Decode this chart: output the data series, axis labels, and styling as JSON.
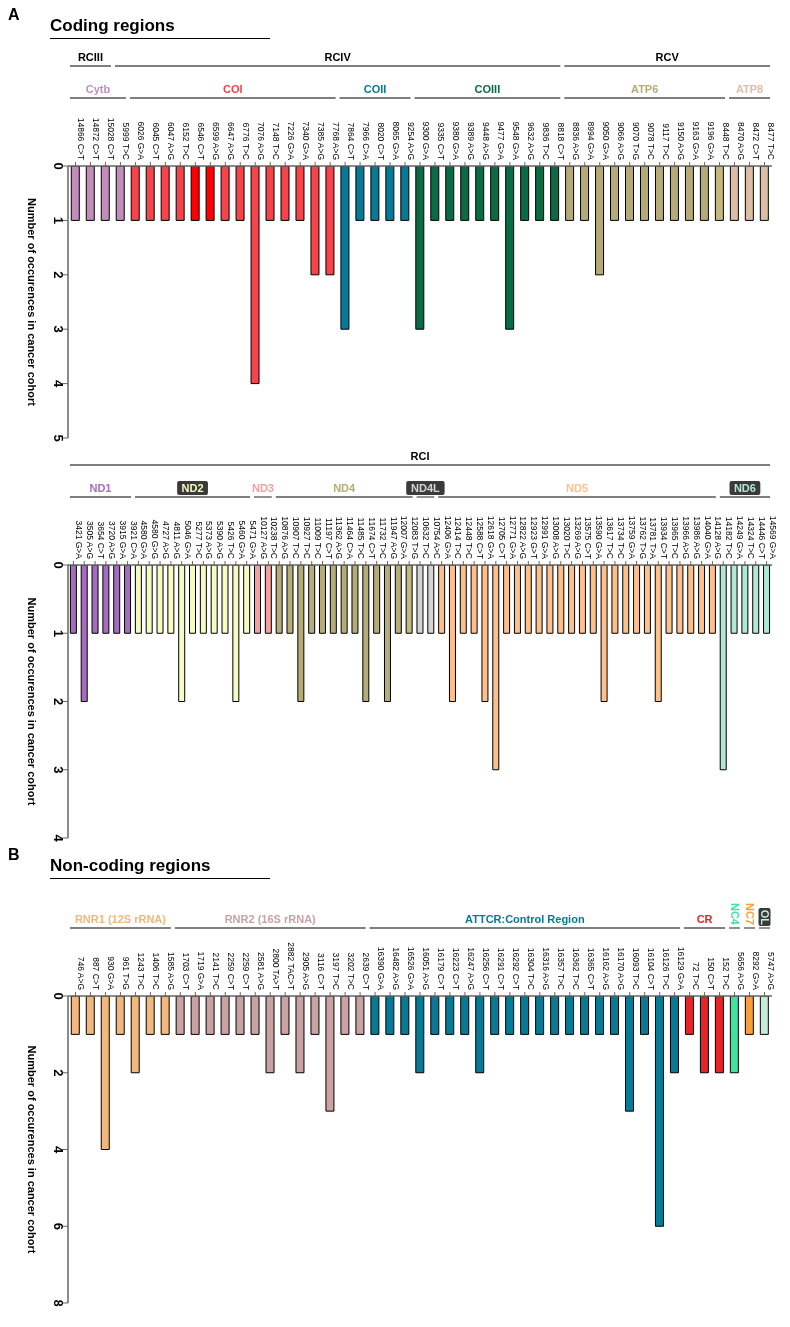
{
  "chart_data": [
    {
      "type": "bar",
      "title": "Coding regions",
      "ylabel": "Number of occurences in cancer cohort",
      "stacked": true,
      "annotations": [
        "A",
        "RCIII",
        "RCIV",
        "RCV"
      ],
      "colors": [
        "#c28dbb",
        "#c28dbb",
        "#c28dbb",
        "#c28dbb",
        "#f7434a",
        "#f7434a",
        "#f7434a",
        "#f7434a",
        "#ff0000",
        "#ff0000",
        "#f7434a",
        "#f7434a",
        "#f7434a",
        "#f7434a",
        "#f7434a",
        "#f7434a",
        "#f7434a",
        "#f7434a",
        "#077b96",
        "#077b96",
        "#077b96",
        "#077b96",
        "#077b96",
        "#0a6b45",
        "#0a6b45",
        "#0a6b45",
        "#0a6b45",
        "#0a6b45",
        "#0a6b45",
        "#0a6b45",
        "#0a6b45",
        "#0a6b45",
        "#0a6b45",
        "#b5aa78",
        "#b5aa78",
        "#b5aa78",
        "#b5aa78",
        "#b5aa78",
        "#b5aa78",
        "#b5aa78",
        "#b5aa78",
        "#b5aa78",
        "#b5aa78",
        "#c4ba80",
        "#dcbea6",
        "#dcbea6",
        "#dcbea6"
      ],
      "categories": [
        "14866 C>T",
        "14872 C>T",
        "15028 C>T",
        "5999 T>C",
        "6026 G>A",
        "6045 C>T",
        "6047 A>G",
        "6152 T>C",
        "6546 C>T",
        "6599 A>G",
        "6647 A>G",
        "6776 T>C",
        "7076 A>G",
        "7148 T>C",
        "7226 G>A",
        "7340 G>A",
        "7385 A>G",
        "7768 A>G",
        "7864 C>T",
        "7966 C>A",
        "8020 C>T",
        "8065 G>A",
        "9254 A>G",
        "9300 G>A",
        "9335 C>T",
        "9380 G>A",
        "9389 A>G",
        "9448 A>G",
        "9477 G>A",
        "9548 G>A",
        "9632 A>G",
        "9836 T>C",
        "8818 C>T",
        "8836 A>G",
        "8994 G>A",
        "9050 G>A",
        "9066 A>G",
        "9070 T>G",
        "9078 T>C",
        "9117 T>C",
        "9150 A>G",
        "9163 G>A",
        "9196 G>A",
        "8448 T>C",
        "8470 A>G",
        "8472 C>T",
        "8477 T>C"
      ],
      "series": [
        {
          "name": "Cytb",
          "color": "#c28dbb",
          "values": [
            1,
            1,
            1,
            1,
            null,
            null,
            null,
            null,
            null,
            null,
            null,
            null,
            null,
            null,
            null,
            null,
            null,
            null,
            null,
            null,
            null,
            null,
            null,
            null,
            null,
            null,
            null,
            null,
            null,
            null,
            null,
            null,
            null,
            null,
            null,
            null,
            null,
            null,
            null,
            null,
            null,
            null,
            null,
            null,
            null,
            null,
            null
          ]
        },
        {
          "name": "COI",
          "color": "#f7434a",
          "values": [
            null,
            null,
            null,
            null,
            1,
            1,
            1,
            1,
            null,
            null,
            1,
            1,
            4,
            1,
            1,
            1,
            2,
            2,
            null,
            null,
            null,
            null,
            null,
            null,
            null,
            null,
            null,
            null,
            null,
            null,
            null,
            null,
            null,
            null,
            null,
            null,
            null,
            null,
            null,
            null,
            null,
            null,
            null,
            null,
            null,
            null,
            null
          ]
        },
        {
          "color": "#ff0000",
          "values": [
            null,
            null,
            null,
            null,
            null,
            null,
            null,
            null,
            1,
            1,
            null,
            null,
            null,
            null,
            null,
            null,
            null,
            null,
            null,
            null,
            null,
            null,
            null,
            null,
            null,
            null,
            null,
            null,
            null,
            null,
            null,
            null,
            null,
            null,
            null,
            null,
            null,
            null,
            null,
            null,
            null,
            null,
            null,
            null,
            null,
            null,
            null
          ]
        },
        {
          "name": "COII",
          "color": "#077b96",
          "values": [
            null,
            null,
            null,
            null,
            null,
            null,
            null,
            null,
            null,
            null,
            null,
            null,
            null,
            null,
            null,
            null,
            null,
            null,
            3,
            1,
            1,
            1,
            1,
            null,
            null,
            null,
            null,
            null,
            null,
            null,
            null,
            null,
            null,
            null,
            null,
            null,
            null,
            null,
            null,
            null,
            null,
            null,
            null,
            null,
            null,
            null,
            null
          ]
        },
        {
          "name": "COIII",
          "color": "#0a6b45",
          "values": [
            null,
            null,
            null,
            null,
            null,
            null,
            null,
            null,
            null,
            null,
            null,
            null,
            null,
            null,
            null,
            null,
            null,
            null,
            null,
            null,
            null,
            null,
            null,
            3,
            1,
            1,
            1,
            1,
            1,
            3,
            1,
            1,
            1,
            null,
            null,
            null,
            null,
            null,
            null,
            null,
            null,
            null,
            null,
            null,
            null,
            null,
            null
          ]
        },
        {
          "name": "ATP6",
          "color": "#b5aa78",
          "values": [
            null,
            null,
            null,
            null,
            null,
            null,
            null,
            null,
            null,
            null,
            null,
            null,
            null,
            null,
            null,
            null,
            null,
            null,
            null,
            null,
            null,
            null,
            null,
            null,
            null,
            null,
            null,
            null,
            null,
            null,
            null,
            null,
            null,
            1,
            1,
            2,
            1,
            1,
            1,
            1,
            1,
            1,
            1,
            1,
            null,
            null,
            null
          ]
        },
        {
          "name": "ATP8",
          "color": "#dcbea6",
          "values": [
            null,
            null,
            null,
            null,
            null,
            null,
            null,
            null,
            null,
            null,
            null,
            null,
            null,
            null,
            null,
            null,
            null,
            null,
            null,
            null,
            null,
            null,
            null,
            null,
            null,
            null,
            null,
            null,
            null,
            null,
            null,
            null,
            null,
            null,
            null,
            null,
            null,
            null,
            null,
            null,
            null,
            null,
            null,
            null,
            1,
            1,
            1
          ]
        }
      ],
      "ylim": [
        5,
        0
      ],
      "yticks": [
        0,
        1,
        2,
        3,
        4,
        5
      ],
      "grid": false,
      "legend": false
    },
    {
      "type": "bar",
      "ylabel": "Number of occurences in cancer cohort",
      "stacked": true,
      "annotations": [
        "RCI"
      ],
      "colors": [
        "#a56dbd",
        "#a56dbd",
        "#a56dbd",
        "#a56dbd",
        "#a56dbd",
        "#a56dbd",
        "#f6fbc4",
        "#f6fbc4",
        "#f6fbc4",
        "#f6fbc4",
        "#f6fbc4",
        "#f6fbc4",
        "#f6fbc4",
        "#f6fbc4",
        "#f6fbc4",
        "#f6fbc4",
        "#f6fbc4",
        "#f4a0a0",
        "#f4a0a0",
        "#b6ac78",
        "#b6ac78",
        "#b6ac78",
        "#b6ac78",
        "#b6ac78",
        "#b6ac78",
        "#b6ac78",
        "#b6ac78",
        "#b6ac78",
        "#b6ac78",
        "#b6ac78",
        "#b6ac78",
        "#c4b97c",
        "#d4d4d4",
        "#d4d4d4",
        "#fdc08c",
        "#fdc08c",
        "#fdc08c",
        "#fdc08c",
        "#fdc08c",
        "#fdc08c",
        "#fdc08c",
        "#fdc08c",
        "#fdc08c",
        "#fdc08c",
        "#fdc08c",
        "#fdc08c",
        "#fdc08c",
        "#fdc08c",
        "#fdc08c",
        "#fdc08c",
        "#fdc08c",
        "#fdc08c",
        "#fdc08c",
        "#fdc08c",
        "#fdc08c",
        "#fdc08c",
        "#fdc08c",
        "#fdc08c",
        "#fdc08c",
        "#fdc08c",
        "#b1e7d5",
        "#b1e7d5",
        "#b1e7d5",
        "#b1e7d5",
        "#b1e7d5"
      ],
      "categories": [
        "3421 G>A",
        "3505 A>G",
        "3654 C>T",
        "3720 A>G",
        "3915 G>A",
        "3921 C>A",
        "4580 G>A",
        "4580 G>G",
        "4727 A>G",
        "4811 A>G",
        "5046 G>A",
        "5277 T>C",
        "5373 A>G",
        "5390 A>G",
        "5426 T>C",
        "5460 G>A",
        "5471 G>A",
        "10127 A>G",
        "10238 T>C",
        "10876 A>G",
        "10907 T>C",
        "10927 T>C",
        "11009 T>C",
        "11197 C>T",
        "11362 A>G",
        "11464 C>A",
        "11485 T>C",
        "11674 C>T",
        "11732 T>C",
        "11947 A>G",
        "12007 G>A",
        "12083 T>G",
        "10632 T>C",
        "10754 A>C",
        "12406 G>A",
        "12414 T>C",
        "12448 T>C",
        "12588 C>T",
        "12618 G>A",
        "12705 C>T",
        "12771 G>A",
        "12822 A>G",
        "12923 G>T",
        "12991 G>A",
        "13008 A>G",
        "13020 T>C",
        "13269 A>G",
        "13575 C>T",
        "13590 G>A",
        "13617 T>C",
        "13734 T>C",
        "13759 G>A",
        "13762 T>G",
        "13781 T>A",
        "13934 C>T",
        "13965 T>C",
        "13966 A>G",
        "13986 A>G",
        "14040 G>A",
        "14128 A>G",
        "14182 T>C",
        "14249 G>A",
        "14324 T>C",
        "14446 C>T",
        "14569 G>A"
      ],
      "series": [
        {
          "name": "ND1",
          "color": "#a56dbd",
          "values": [
            1,
            2,
            1,
            1,
            1,
            1,
            null,
            null,
            null,
            null,
            null,
            null,
            null,
            null,
            null,
            null,
            null,
            null,
            null,
            null,
            null,
            null,
            null,
            null,
            null,
            null,
            null,
            null,
            null,
            null,
            null,
            null,
            null,
            null,
            null,
            null,
            null,
            null,
            null,
            null,
            null,
            null,
            null,
            null,
            null,
            null,
            null,
            null,
            null,
            null,
            null,
            null,
            null,
            null,
            null,
            null,
            null,
            null,
            null,
            null,
            null,
            null,
            null,
            null,
            null
          ]
        },
        {
          "name": "ND2",
          "color": "#f6fbc4",
          "values": [
            null,
            null,
            null,
            null,
            null,
            null,
            1,
            1,
            1,
            1,
            2,
            1,
            1,
            1,
            1,
            2,
            1,
            null,
            null,
            null,
            null,
            null,
            null,
            null,
            null,
            null,
            null,
            null,
            null,
            null,
            null,
            null,
            null,
            null,
            null,
            null,
            null,
            null,
            null,
            null,
            null,
            null,
            null,
            null,
            null,
            null,
            null,
            null,
            null,
            null,
            null,
            null,
            null,
            null,
            null,
            null,
            null,
            null,
            null,
            null,
            null,
            null,
            null,
            null,
            null
          ]
        },
        {
          "name": "ND3",
          "color": "#f4a0a0",
          "values": [
            null,
            null,
            null,
            null,
            null,
            null,
            null,
            null,
            null,
            null,
            null,
            null,
            null,
            null,
            null,
            null,
            null,
            1,
            1,
            null,
            null,
            null,
            null,
            null,
            null,
            null,
            null,
            null,
            null,
            null,
            null,
            null,
            null,
            null,
            null,
            null,
            null,
            null,
            null,
            null,
            null,
            null,
            null,
            null,
            null,
            null,
            null,
            null,
            null,
            null,
            null,
            null,
            null,
            null,
            null,
            null,
            null,
            null,
            null,
            null,
            null,
            null,
            null,
            null,
            null
          ]
        },
        {
          "name": "ND4",
          "color": "#b6ac78",
          "values": [
            null,
            null,
            null,
            null,
            null,
            null,
            null,
            null,
            null,
            null,
            null,
            null,
            null,
            null,
            null,
            null,
            null,
            null,
            null,
            1,
            1,
            2,
            1,
            1,
            1,
            1,
            1,
            2,
            1,
            2,
            1,
            1,
            null,
            null,
            null,
            null,
            null,
            null,
            null,
            null,
            null,
            null,
            null,
            null,
            null,
            null,
            null,
            null,
            null,
            null,
            null,
            null,
            null,
            null,
            null,
            null,
            null,
            null,
            null,
            null,
            null,
            null,
            null,
            null,
            null
          ]
        },
        {
          "name": "ND4L",
          "color": "#d4d4d4",
          "values": [
            null,
            null,
            null,
            null,
            null,
            null,
            null,
            null,
            null,
            null,
            null,
            null,
            null,
            null,
            null,
            null,
            null,
            null,
            null,
            null,
            null,
            null,
            null,
            null,
            null,
            null,
            null,
            null,
            null,
            null,
            null,
            null,
            1,
            1,
            null,
            null,
            null,
            null,
            null,
            null,
            null,
            null,
            null,
            null,
            null,
            null,
            null,
            null,
            null,
            null,
            null,
            null,
            null,
            null,
            null,
            null,
            null,
            null,
            null,
            null,
            null,
            null,
            null,
            null,
            null
          ]
        },
        {
          "name": "ND5",
          "color": "#fdc08c",
          "values": [
            null,
            null,
            null,
            null,
            null,
            null,
            null,
            null,
            null,
            null,
            null,
            null,
            null,
            null,
            null,
            null,
            null,
            null,
            null,
            null,
            null,
            null,
            null,
            null,
            null,
            null,
            null,
            null,
            null,
            null,
            null,
            null,
            null,
            null,
            1,
            2,
            1,
            1,
            2,
            3,
            1,
            1,
            1,
            1,
            1,
            1,
            1,
            1,
            1,
            2,
            1,
            1,
            1,
            1,
            2,
            1,
            1,
            1,
            1,
            1,
            null,
            null,
            null,
            null,
            null
          ]
        },
        {
          "name": "ND6",
          "color": "#b1e7d5",
          "values": [
            null,
            null,
            null,
            null,
            null,
            null,
            null,
            null,
            null,
            null,
            null,
            null,
            null,
            null,
            null,
            null,
            null,
            null,
            null,
            null,
            null,
            null,
            null,
            null,
            null,
            null,
            null,
            null,
            null,
            null,
            null,
            null,
            null,
            null,
            null,
            null,
            null,
            null,
            null,
            null,
            null,
            null,
            null,
            null,
            null,
            null,
            null,
            null,
            null,
            null,
            null,
            null,
            null,
            null,
            null,
            null,
            null,
            null,
            null,
            null,
            3,
            1,
            1,
            1,
            1
          ]
        }
      ],
      "ylim": [
        4,
        0
      ],
      "yticks": [
        0,
        1,
        2,
        3,
        4
      ],
      "grid": false,
      "legend": false
    },
    {
      "type": "bar",
      "title": "Non-coding regions",
      "ylabel": "Number of occurences in cancer cohort",
      "stacked": true,
      "annotations": [
        "B"
      ],
      "colors": [
        "#f2b77c",
        "#f2b77c",
        "#f2b77c",
        "#f2b77c",
        "#f2b77c",
        "#f2b77c",
        "#f2b77c",
        "#c9a3a3",
        "#c9a3a3",
        "#c9a3a3",
        "#c9a3a3",
        "#c9a3a3",
        "#c9a3a3",
        "#c9a3a3",
        "#c9a3a3",
        "#c9a3a3",
        "#c9a3a3",
        "#c9a3a3",
        "#c9a3a3",
        "#c9a3a3",
        "#077b96",
        "#077b96",
        "#077b96",
        "#077b96",
        "#077b96",
        "#077b96",
        "#077b96",
        "#077b96",
        "#077b96",
        "#077b96",
        "#077b96",
        "#077b96",
        "#077b96",
        "#077b96",
        "#077b96",
        "#077b96",
        "#077b96",
        "#077b96",
        "#077b96",
        "#077b96",
        "#077b96",
        "#e8242a",
        "#e8242a",
        "#e8242a",
        "#3ee3a0",
        "#f7a03c",
        "#c5ecd6"
      ],
      "categories": [
        "746 A>G",
        "887 C>T",
        "930 G>A",
        "961 T>G",
        "1243 T>C",
        "1406 T>C",
        "1585 A>G",
        "1703 C>T",
        "1719 G>A",
        "2141 T>C",
        "2259 C>T",
        "2259 C>T",
        "2581 A>G",
        "2800 TA>T",
        "2882 TAC>T",
        "2905 A>G",
        "3116 C>T",
        "3197 T>C",
        "3202 T>C",
        "2639 C>T",
        "16390 G>A",
        "16482 A>G",
        "16526 G>A",
        "16051 A>G",
        "16179 C>T",
        "16223 C>T",
        "16247 A>G",
        "16256 C>T",
        "16291 C>T",
        "16292 C>T",
        "16304 T>C",
        "16316 A>G",
        "16357 T>C",
        "16362 T>C",
        "16365 C>T",
        "16162 A>G",
        "16170 A>G",
        "16093 T>C",
        "16104 C>T",
        "16126 T>C",
        "16129 G>A",
        "72 T>C",
        "150 C>T",
        "152 T>C",
        "5656 A>G",
        "8292 G>A",
        "5747 A>G"
      ],
      "series": [
        {
          "name": "RNR1 (12S rRNA)",
          "color": "#f2b77c",
          "values": [
            1,
            1,
            4,
            1,
            2,
            1,
            1,
            null,
            null,
            null,
            null,
            null,
            null,
            null,
            null,
            null,
            null,
            null,
            null,
            null,
            null,
            null,
            null,
            null,
            null,
            null,
            null,
            null,
            null,
            null,
            null,
            null,
            null,
            null,
            null,
            null,
            null,
            null,
            null,
            null,
            null,
            null,
            null,
            null,
            null,
            null,
            null
          ]
        },
        {
          "name": "RNR2 (16S rRNA)",
          "color": "#c9a3a3",
          "values": [
            null,
            null,
            null,
            null,
            null,
            null,
            null,
            1,
            1,
            1,
            1,
            1,
            1,
            2,
            1,
            2,
            1,
            3,
            1,
            1,
            null,
            null,
            null,
            null,
            null,
            null,
            null,
            null,
            null,
            null,
            null,
            null,
            null,
            null,
            null,
            null,
            null,
            null,
            null,
            null,
            null,
            null,
            null,
            null,
            null,
            null,
            null
          ]
        },
        {
          "name": "ATTCR:Control Region",
          "color": "#077b96",
          "values": [
            null,
            null,
            null,
            null,
            null,
            null,
            null,
            null,
            null,
            null,
            null,
            null,
            null,
            null,
            null,
            null,
            null,
            null,
            null,
            null,
            1,
            1,
            1,
            2,
            1,
            1,
            1,
            2,
            1,
            1,
            1,
            1,
            1,
            1,
            1,
            1,
            1,
            3,
            1,
            6,
            2,
            null,
            null,
            null,
            null,
            null,
            null
          ]
        },
        {
          "name": "CR",
          "color": "#e8242a",
          "values": [
            null,
            null,
            null,
            null,
            null,
            null,
            null,
            null,
            null,
            null,
            null,
            null,
            null,
            null,
            null,
            null,
            null,
            null,
            null,
            null,
            null,
            null,
            null,
            null,
            null,
            null,
            null,
            null,
            null,
            null,
            null,
            null,
            null,
            null,
            null,
            null,
            null,
            null,
            null,
            null,
            null,
            1,
            2,
            2,
            null,
            null,
            null
          ]
        },
        {
          "name": "NC4",
          "color": "#3ee3a0",
          "values": [
            null,
            null,
            null,
            null,
            null,
            null,
            null,
            null,
            null,
            null,
            null,
            null,
            null,
            null,
            null,
            null,
            null,
            null,
            null,
            null,
            null,
            null,
            null,
            null,
            null,
            null,
            null,
            null,
            null,
            null,
            null,
            null,
            null,
            null,
            null,
            null,
            null,
            null,
            null,
            null,
            null,
            null,
            null,
            null,
            2,
            null,
            null
          ]
        },
        {
          "name": "NC7",
          "color": "#f7a03c",
          "values": [
            null,
            null,
            null,
            null,
            null,
            null,
            null,
            null,
            null,
            null,
            null,
            null,
            null,
            null,
            null,
            null,
            null,
            null,
            null,
            null,
            null,
            null,
            null,
            null,
            null,
            null,
            null,
            null,
            null,
            null,
            null,
            null,
            null,
            null,
            null,
            null,
            null,
            null,
            null,
            null,
            null,
            null,
            null,
            null,
            null,
            1,
            null
          ]
        },
        {
          "name": "OL",
          "color": "#c5ecd6",
          "values": [
            null,
            null,
            null,
            null,
            null,
            null,
            null,
            null,
            null,
            null,
            null,
            null,
            null,
            null,
            null,
            null,
            null,
            null,
            null,
            null,
            null,
            null,
            null,
            null,
            null,
            null,
            null,
            null,
            null,
            null,
            null,
            null,
            null,
            null,
            null,
            null,
            null,
            null,
            null,
            null,
            null,
            null,
            null,
            null,
            null,
            null,
            1
          ]
        }
      ],
      "ylim": [
        8,
        0
      ],
      "yticks": [
        0,
        2,
        4,
        6,
        8
      ],
      "grid": false,
      "legend": false
    }
  ]
}
